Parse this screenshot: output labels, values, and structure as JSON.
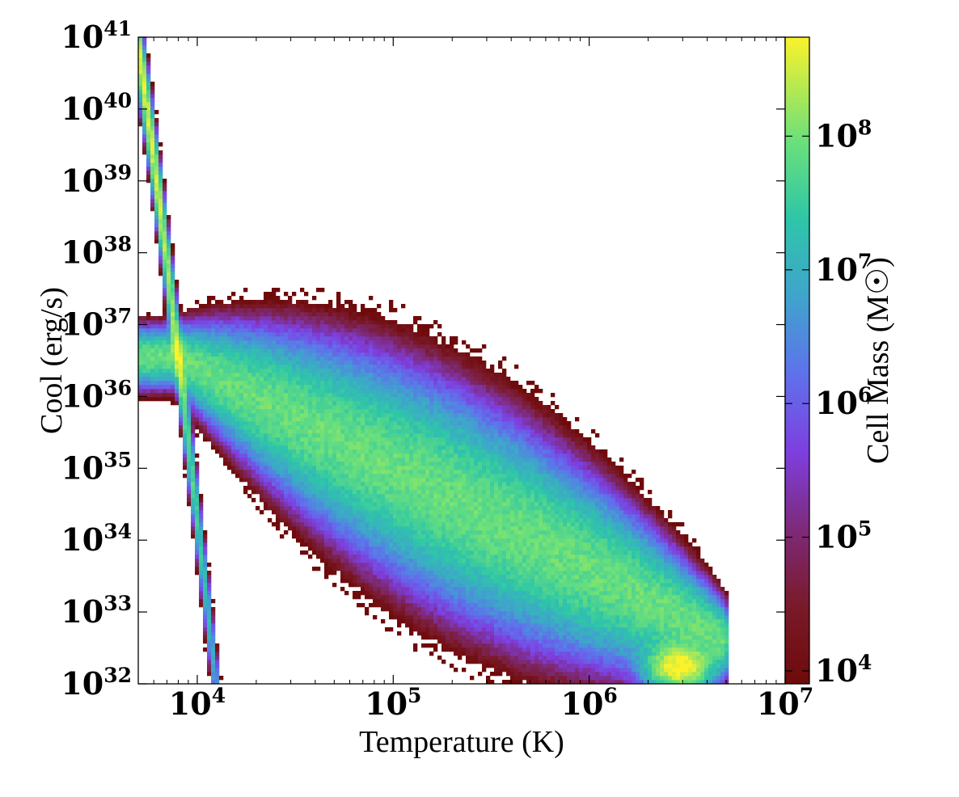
{
  "chart_data": {
    "type": "heatmap",
    "title": "",
    "xlabel": "Temperature  (K)",
    "ylabel": "Cool  (erg/s)",
    "colorbar_label": "Cell Mass  (M☉)",
    "x_scale": "log",
    "y_scale": "log",
    "xlim": [
      5000,
      10000000
    ],
    "ylim": [
      1e+32,
      1e+41
    ],
    "clim": [
      8000,
      550000000
    ],
    "colormap": "plasma-like (dark red → purple → blue → teal → green → yellow)",
    "x_ticks": [
      {
        "value": 10000,
        "base": "10",
        "exp": "4"
      },
      {
        "value": 100000,
        "base": "10",
        "exp": "5"
      },
      {
        "value": 1000000,
        "base": "10",
        "exp": "6"
      },
      {
        "value": 10000000,
        "base": "10",
        "exp": "7"
      }
    ],
    "y_ticks": [
      {
        "value": 1e+32,
        "base": "10",
        "exp": "32"
      },
      {
        "value": 1e+33,
        "base": "10",
        "exp": "33"
      },
      {
        "value": 1e+34,
        "base": "10",
        "exp": "34"
      },
      {
        "value": 1e+35,
        "base": "10",
        "exp": "35"
      },
      {
        "value": 1e+36,
        "base": "10",
        "exp": "36"
      },
      {
        "value": 1e+37,
        "base": "10",
        "exp": "37"
      },
      {
        "value": 1e+38,
        "base": "10",
        "exp": "38"
      },
      {
        "value": 1e+39,
        "base": "10",
        "exp": "39"
      },
      {
        "value": 1e+40,
        "base": "10",
        "exp": "40"
      },
      {
        "value": 1e+41,
        "base": "10",
        "exp": "41"
      }
    ],
    "colorbar_ticks": [
      {
        "value": 10000,
        "base": "10",
        "exp": "4"
      },
      {
        "value": 100000,
        "base": "10",
        "exp": "5"
      },
      {
        "value": 1000000,
        "base": "10",
        "exp": "6"
      },
      {
        "value": 10000000,
        "base": "10",
        "exp": "7"
      },
      {
        "value": 100000000,
        "base": "10",
        "exp": "8"
      }
    ],
    "features": [
      {
        "description": "bright ridge",
        "T": [
          5000,
          10000
        ],
        "cool": [
          1e+40,
          1e+36
        ],
        "mass": 400000000.0
      },
      {
        "description": "hot dense clump",
        "T": [
          2500000,
          3500000
        ],
        "cool": [
          1.5e+32,
          3e+32
        ],
        "mass": 400000000.0
      },
      {
        "description": "main diagonal band",
        "T": [
          10000,
          4000000
        ],
        "cool": [
          3e+36,
          3e+32
        ],
        "mass": 3000000.0
      }
    ]
  }
}
